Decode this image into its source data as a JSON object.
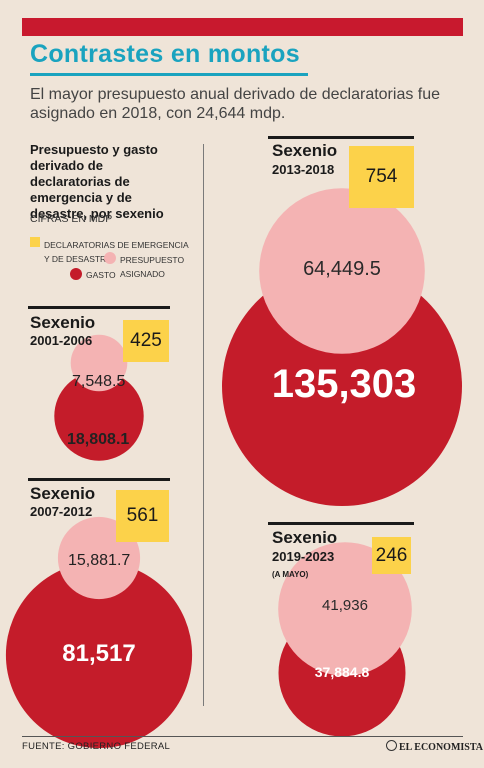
{
  "header": {
    "title": "Contrastes en montos",
    "subtitle": "El mayor presupuesto anual derivado de declaratorias fue asignado en 2018, con 24,644 mdp."
  },
  "legend": {
    "title": "Presupuesto y gasto derivado de declaratorias de emergencia y de desastre, por sexenio",
    "units": "CIFRAS EN MDP",
    "items": [
      {
        "label": "DECLARATORIAS DE EMERGENCIA Y DE DESASTRE",
        "color": "#fcd24a"
      },
      {
        "label": "PRESUPUESTO ASIGNADO",
        "color": "#f4b3b3"
      },
      {
        "label": "GASTO",
        "color": "#c41c2a"
      }
    ]
  },
  "chart_data": {
    "type": "bubble",
    "title": "Presupuesto y gasto derivado de declaratorias de emergencia y de desastre, por sexenio",
    "units": "CIFRAS EN MDP",
    "series": [
      {
        "name": "DECLARATORIAS DE EMERGENCIA Y DE DESASTRE",
        "color": "#fcd24a"
      },
      {
        "name": "PRESUPUESTO ASIGNADO",
        "color": "#f4b3b3"
      },
      {
        "name": "GASTO",
        "color": "#c41c2a"
      }
    ],
    "sexenios": [
      {
        "label": "Sexenio",
        "years": "2001-2006",
        "note": "",
        "declaratorias": 425,
        "presupuesto": 7548.5,
        "gasto": 18808.1,
        "presupuesto_label": "7,548.5",
        "gasto_label": "18,808.1"
      },
      {
        "label": "Sexenio",
        "years": "2007-2012",
        "note": "",
        "declaratorias": 561,
        "presupuesto": 15881.7,
        "gasto": 81517,
        "presupuesto_label": "15,881.7",
        "gasto_label": "81,517"
      },
      {
        "label": "Sexenio",
        "years": "2013-2018",
        "note": "",
        "declaratorias": 754,
        "presupuesto": 64449.5,
        "gasto": 135303,
        "presupuesto_label": "64,449.5",
        "gasto_label": "135,303"
      },
      {
        "label": "Sexenio",
        "years": "2019-2023",
        "note": "(A MAYO)",
        "declaratorias": 246,
        "presupuesto": 41936,
        "gasto": 37884.8,
        "presupuesto_label": "41,936",
        "gasto_label": "37,884.8"
      }
    ]
  },
  "footer": {
    "source": "FUENTE: GOBIERNO FEDERAL",
    "brand": "EL ECONOMISTA"
  }
}
